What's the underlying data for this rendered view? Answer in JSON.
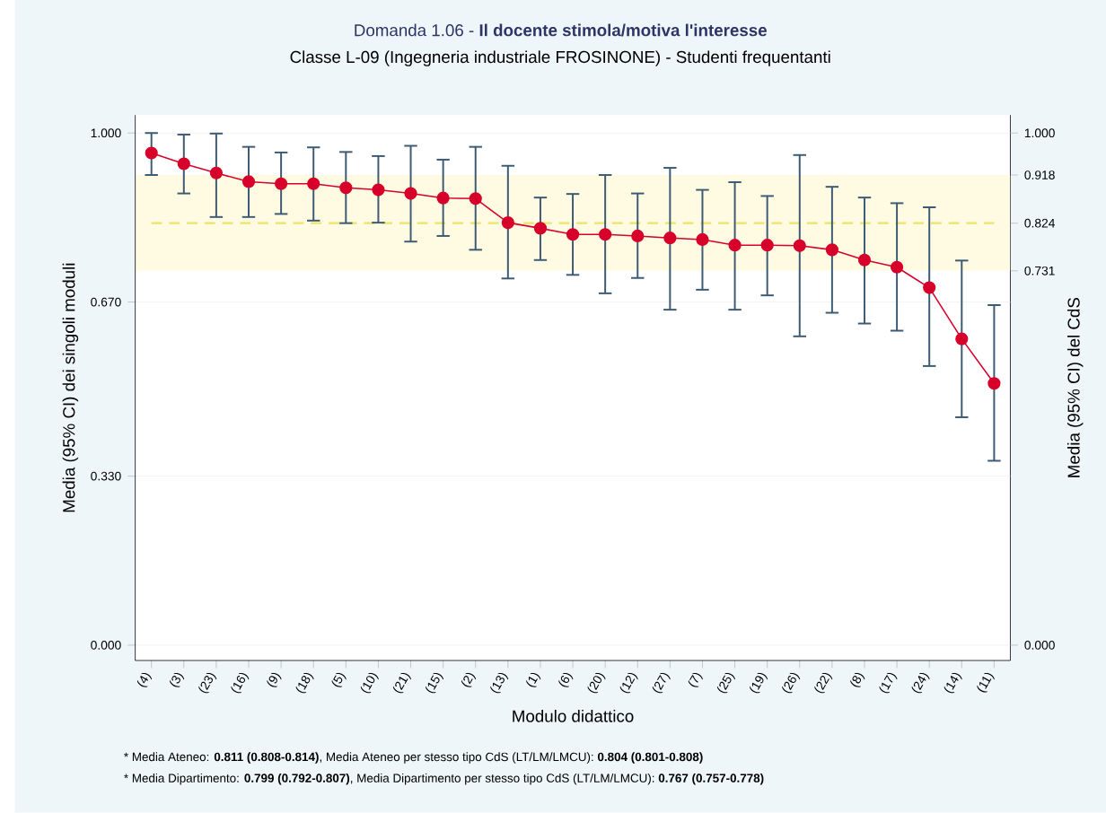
{
  "chart_data": {
    "type": "line",
    "title": "Domanda 1.06 - **Il docente stimola/motiva l'interesse**",
    "subtitle": "Classe L-09 (Ingegneria industriale FROSINONE) - Studenti frequentanti",
    "xlabel": "Modulo didattico",
    "ylabel": "Media (95% CI) dei singoli moduli",
    "y2label": "Media (95% CI) del CdS",
    "categories": [
      "(4)",
      "(3)",
      "(23)",
      "(16)",
      "(9)",
      "(18)",
      "(5)",
      "(10)",
      "(21)",
      "(15)",
      "(2)",
      "(13)",
      "(1)",
      "(6)",
      "(20)",
      "(12)",
      "(27)",
      "(7)",
      "(25)",
      "(19)",
      "(26)",
      "(22)",
      "(8)",
      "(17)",
      "(24)",
      "(14)",
      "(11)"
    ],
    "series": [
      {
        "color": "#d7002a",
        "values": [
          0.961,
          0.94,
          0.922,
          0.905,
          0.901,
          0.901,
          0.893,
          0.889,
          0.882,
          0.873,
          0.872,
          0.825,
          0.814,
          0.802,
          0.802,
          0.799,
          0.795,
          0.792,
          0.781,
          0.781,
          0.78,
          0.772,
          0.752,
          0.738,
          0.698,
          0.598,
          0.511
        ],
        "errors": [
          [
            0.918,
            1.0
          ],
          [
            0.882,
            0.997
          ],
          [
            0.836,
            0.999
          ],
          [
            0.836,
            0.973
          ],
          [
            0.842,
            0.962
          ],
          [
            0.829,
            0.972
          ],
          [
            0.824,
            0.963
          ],
          [
            0.825,
            0.955
          ],
          [
            0.788,
            0.975
          ],
          [
            0.799,
            0.948
          ],
          [
            0.772,
            0.973
          ],
          [
            0.716,
            0.936
          ],
          [
            0.752,
            0.874
          ],
          [
            0.723,
            0.881
          ],
          [
            0.687,
            0.918
          ],
          [
            0.717,
            0.882
          ],
          [
            0.655,
            0.932
          ],
          [
            0.694,
            0.889
          ],
          [
            0.655,
            0.904
          ],
          [
            0.683,
            0.877
          ],
          [
            0.603,
            0.957
          ],
          [
            0.649,
            0.895
          ],
          [
            0.628,
            0.874
          ],
          [
            0.614,
            0.863
          ],
          [
            0.545,
            0.855
          ],
          [
            0.445,
            0.751
          ],
          [
            0.36,
            0.664
          ]
        ]
      }
    ],
    "marker": "circle",
    "grid": "y",
    "ylim": [
      -0.03,
      1.035
    ],
    "yticks": [
      {
        "value": 0,
        "label": "0.000"
      },
      {
        "value": 0.33,
        "label": "0.330"
      },
      {
        "value": 0.67,
        "label": "0.670"
      },
      {
        "value": 1,
        "label": "1.000"
      }
    ],
    "y2lim": [
      -0.03,
      1.035
    ],
    "y2ticks": [
      {
        "value": 0,
        "label": "0.000"
      },
      {
        "value": 0.731,
        "label": "0.731"
      },
      {
        "value": 0.824,
        "label": "0.824"
      },
      {
        "value": 0.918,
        "label": "0.918"
      },
      {
        "value": 1,
        "label": "1.000"
      }
    ],
    "ref_lines": [
      {
        "axis": "y2",
        "value": 0.824,
        "color": "#ece36a",
        "line_style": "dashed"
      }
    ],
    "bands": [
      {
        "axis": "y2",
        "from": 0.731,
        "to": 0.918,
        "color": "#fffbe3"
      }
    ],
    "annotations": [
      "* Media Ateneo: **0.811 (0.808-0.814)**,  Media Ateneo per stesso tipo CdS (LT/LM/LMCU): **0.804 (0.801-0.808)**",
      "* Media Dipartimento: **0.799 (0.792-0.807)**, Media Dipartimento per stesso tipo CdS (LT/LM/LMCU): **0.767 (0.757-0.778)**"
    ]
  }
}
